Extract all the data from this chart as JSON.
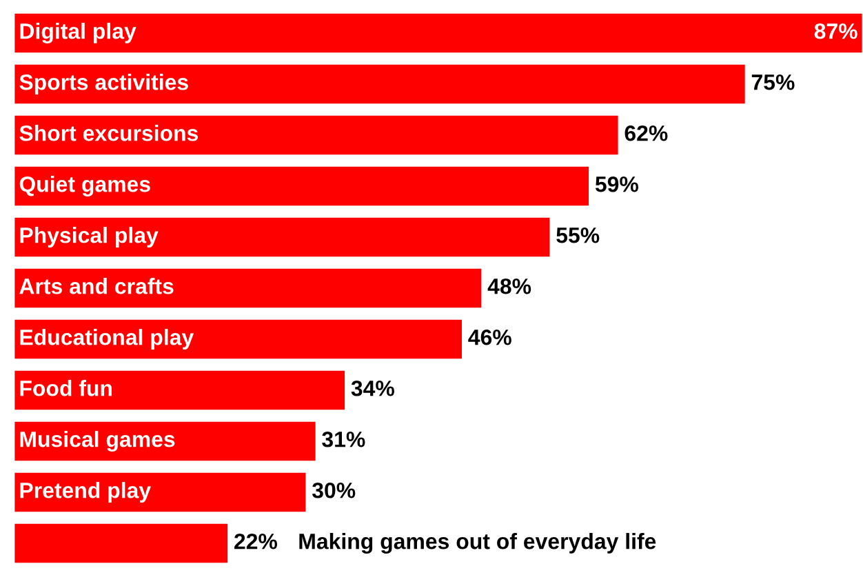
{
  "chart_data": {
    "type": "bar",
    "orientation": "horizontal",
    "color": "#ff0000",
    "categories": [
      "Digital play",
      "Sports activities",
      "Short excursions",
      "Quiet games",
      "Physical play",
      "Arts and crafts",
      "Educational play",
      "Food fun",
      "Musical games",
      "Pretend play",
      "Making games out of everyday life"
    ],
    "values": [
      87,
      75,
      62,
      59,
      55,
      48,
      46,
      34,
      31,
      30,
      22
    ],
    "value_labels": [
      "87%",
      "75%",
      "62%",
      "59%",
      "55%",
      "48%",
      "46%",
      "34%",
      "31%",
      "30%",
      "22%"
    ]
  }
}
